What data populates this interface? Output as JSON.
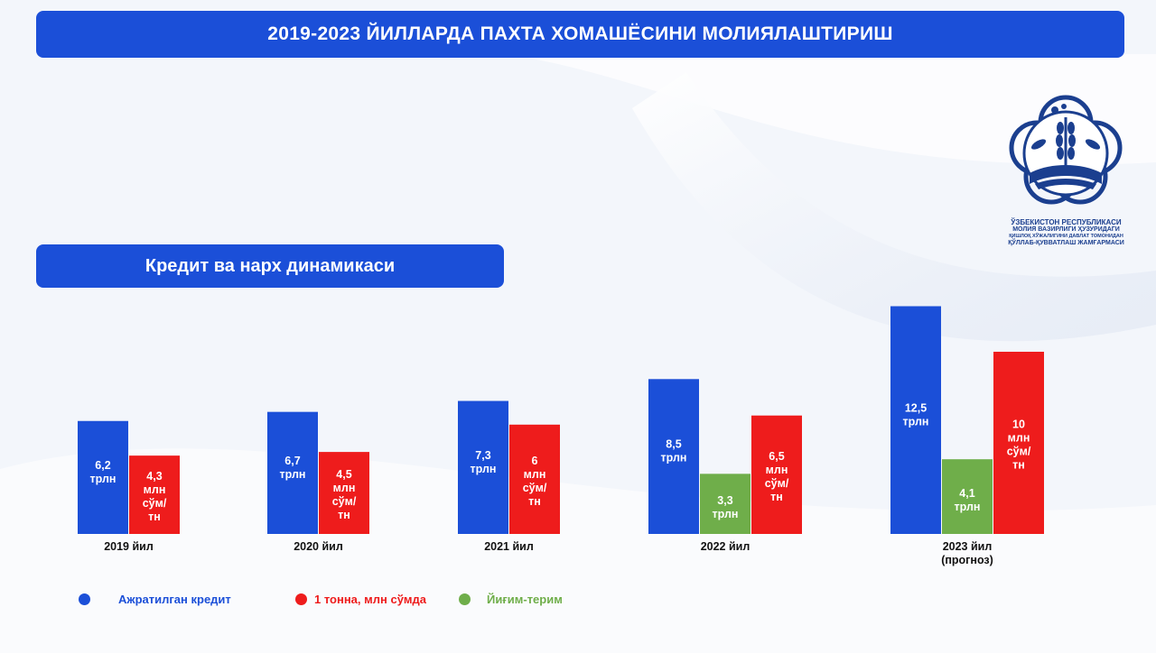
{
  "header": {
    "title": "2019-2023 ЙИЛЛАРДА ПАХТА ХОМАШЁСИНИ МОЛИЯЛАШТИРИШ"
  },
  "section": {
    "subtitle": "Кредит ва нарх динамикаси"
  },
  "organization": {
    "line1": "ЎЗБЕКИСТОН РЕСПУБЛИКАСИ",
    "line2": "МОЛИЯ ВАЗИРЛИГИ ҲУЗУРИДАГИ",
    "line3": "ҚИШЛОҚ ХЎЖАЛИГИНИ ДАВЛАТ ТОМОНИДАН",
    "line4": "ҚЎЛЛАБ-ҚУВВАТЛАШ ЖАМҒАРМАСИ"
  },
  "colors": {
    "credit": "#1b4fd8",
    "price": "#ee1c1c",
    "harvest": "#6fae4a",
    "banner": "#1b4fd8"
  },
  "chart_data": {
    "type": "bar",
    "categories": [
      "2019 йил",
      "2020 йил",
      "2021 йил",
      "2022 йил",
      "2023 йил\n(прогноз)"
    ],
    "series": [
      {
        "name": "Ажратилган кредит",
        "values": [
          6.2,
          6.7,
          7.3,
          8.5,
          12.5
        ],
        "labels": [
          "6,2\nтрлн",
          "6,7\nтрлн",
          "7,3\nтрлн",
          "8,5\nтрлн",
          "12,5\nтрлн"
        ],
        "color": "#1b4fd8"
      },
      {
        "name": "Йиғим-терим",
        "values": [
          null,
          null,
          null,
          3.3,
          4.1
        ],
        "labels": [
          null,
          null,
          null,
          "3,3\nтрлн",
          "4,1\nтрлн"
        ],
        "color": "#6fae4a"
      },
      {
        "name": "1 тонна, млн сўмда",
        "values": [
          4.3,
          4.5,
          6,
          6.5,
          10
        ],
        "labels": [
          "4,3\nмлн\nсўм/\nтн",
          "4,5\nмлн\nсўм/\nтн",
          "6\nмлн\nсўм/\nтн",
          "6,5\nмлн\nсўм/\nтн",
          "10\nмлн\nсўм/\nтн"
        ],
        "color": "#ee1c1c"
      }
    ],
    "legend": [
      {
        "label": "Ажратилган кредит",
        "color": "#1b4fd8"
      },
      {
        "label": "1 тонна, млн сўмда",
        "color": "#ee1c1c"
      },
      {
        "label": "Йиғим-терим",
        "color": "#6fae4a"
      }
    ],
    "legend_position": "bottom",
    "grid": false
  }
}
